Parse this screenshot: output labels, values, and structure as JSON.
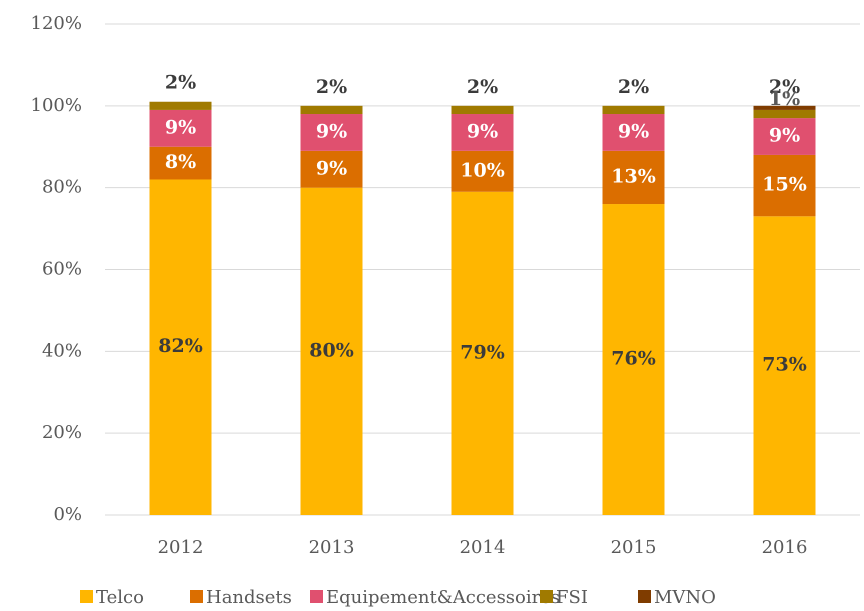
{
  "chart_data": {
    "type": "bar",
    "stacked": true,
    "categories": [
      "2012",
      "2013",
      "2014",
      "2015",
      "2016"
    ],
    "series": [
      {
        "name": "Telco",
        "color": "#FFB600",
        "values": [
          82,
          80,
          79,
          76,
          73
        ],
        "value_labels": [
          "82%",
          "80%",
          "79%",
          "76%",
          "73%"
        ]
      },
      {
        "name": "Handsets",
        "color": "#DB6E00",
        "values": [
          8,
          9,
          10,
          13,
          15
        ],
        "value_labels": [
          "8%",
          "9%",
          "10%",
          "13%",
          "15%"
        ]
      },
      {
        "name": "Equipement&Accessoires",
        "color": "#E0506F",
        "values": [
          9,
          9,
          9,
          9,
          9
        ],
        "value_labels": [
          "9%",
          "9%",
          "9%",
          "9%",
          "9%"
        ]
      },
      {
        "name": "FSI",
        "color": "#A07A00",
        "values": [
          2,
          2,
          2,
          2,
          2
        ],
        "value_labels": [
          "2%",
          "2%",
          "2%",
          "2%",
          "2%"
        ]
      },
      {
        "name": "MVNO",
        "color": "#7F3C00",
        "values": [
          null,
          null,
          null,
          null,
          1
        ],
        "value_labels": [
          null,
          null,
          null,
          null,
          "1%"
        ]
      }
    ],
    "ylim": [
      0,
      120
    ],
    "yticks": [
      {
        "value": 0,
        "label": "0%"
      },
      {
        "value": 20,
        "label": "20%"
      },
      {
        "value": 40,
        "label": "40%"
      },
      {
        "value": 60,
        "label": "60%"
      },
      {
        "value": 80,
        "label": "80%"
      },
      {
        "value": 100,
        "label": "100%"
      },
      {
        "value": 120,
        "label": "120%"
      }
    ],
    "grid": true,
    "legend": "bottom"
  }
}
